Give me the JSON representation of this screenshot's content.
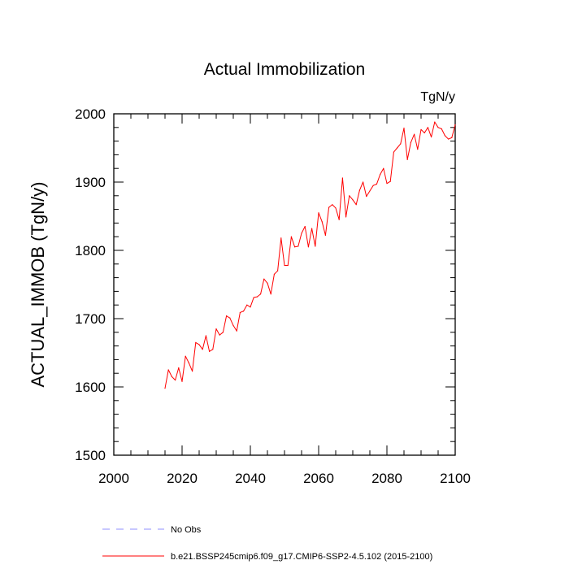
{
  "chart_data": {
    "type": "line",
    "title": "Actual Immobilization",
    "units": "TgN/y",
    "ylabel": "ACTUAL_IMMOB  (TgN/y)",
    "xlabel": "",
    "xlim": [
      2000,
      2100
    ],
    "ylim": [
      1500,
      2000
    ],
    "xticks": [
      2000,
      2020,
      2040,
      2060,
      2080,
      2100
    ],
    "yticks": [
      1500,
      1600,
      1700,
      1800,
      1900,
      2000
    ],
    "xtick_labels": [
      "2000",
      "2020",
      "2040",
      "2060",
      "2080",
      "2100"
    ],
    "ytick_labels": [
      "1500",
      "1600",
      "1700",
      "1800",
      "1900",
      "2000"
    ],
    "grid": false,
    "legend_position": "bottom",
    "series": [
      {
        "name": "b.e21.BSSP245cmip6.f09_g17.CMIP6-SSP2-4.5.102 (2015-2100)",
        "color": "#ff0000",
        "style": "solid",
        "x": [
          2015,
          2016,
          2017,
          2018,
          2019,
          2020,
          2021,
          2022,
          2023,
          2024,
          2025,
          2026,
          2027,
          2028,
          2029,
          2030,
          2031,
          2032,
          2033,
          2034,
          2035,
          2036,
          2037,
          2038,
          2039,
          2040,
          2041,
          2042,
          2043,
          2044,
          2045,
          2046,
          2047,
          2048,
          2049,
          2050,
          2051,
          2052,
          2053,
          2054,
          2055,
          2056,
          2057,
          2058,
          2059,
          2060,
          2061,
          2062,
          2063,
          2064,
          2065,
          2066,
          2067,
          2068,
          2069,
          2070,
          2071,
          2072,
          2073,
          2074,
          2075,
          2076,
          2077,
          2078,
          2079,
          2080,
          2081,
          2082,
          2083,
          2084,
          2085,
          2086,
          2087,
          2088,
          2089,
          2090,
          2091,
          2092,
          2093,
          2094,
          2095,
          2096,
          2097,
          2098,
          2099,
          2100
        ],
        "values": [
          1598,
          1625,
          1615,
          1610,
          1628,
          1608,
          1645,
          1635,
          1623,
          1665,
          1662,
          1655,
          1675,
          1652,
          1655,
          1685,
          1676,
          1680,
          1704,
          1701,
          1690,
          1682,
          1709,
          1711,
          1720,
          1717,
          1731,
          1732,
          1736,
          1758,
          1752,
          1736,
          1765,
          1770,
          1818,
          1778,
          1778,
          1820,
          1805,
          1806,
          1825,
          1835,
          1805,
          1832,
          1806,
          1855,
          1842,
          1822,
          1863,
          1867,
          1862,
          1845,
          1906,
          1849,
          1880,
          1874,
          1867,
          1888,
          1900,
          1879,
          1887,
          1895,
          1897,
          1911,
          1920,
          1898,
          1901,
          1944,
          1950,
          1956,
          1979,
          1933,
          1958,
          1970,
          1948,
          1977,
          1972,
          1980,
          1966,
          1988,
          1980,
          1978,
          1968,
          1963,
          1965,
          1984
        ]
      }
    ],
    "legend": [
      {
        "label": "No Obs",
        "color": "#8f8fff",
        "style": "dashed"
      },
      {
        "label": "b.e21.BSSP245cmip6.f09_g17.CMIP6-SSP2-4.5.102 (2015-2100)",
        "color": "#ff0000",
        "style": "solid"
      }
    ]
  }
}
